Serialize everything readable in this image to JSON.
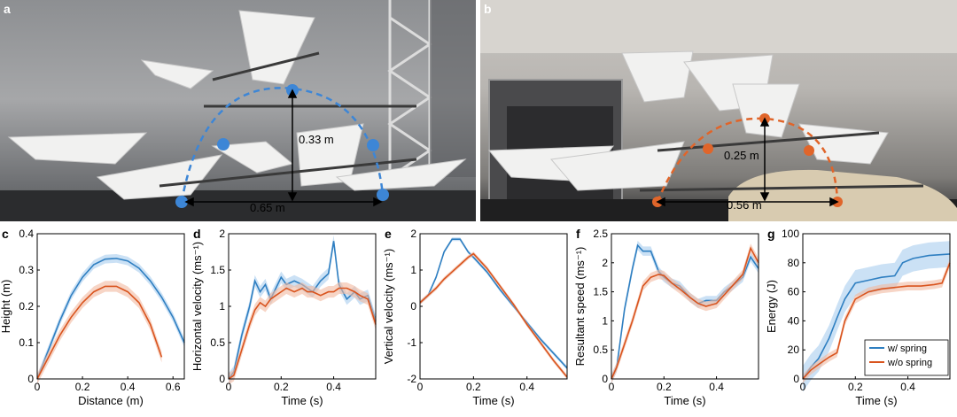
{
  "panels": {
    "a": {
      "letter": "a",
      "height_label": "0.33 m",
      "distance_label": "0.65 m"
    },
    "b": {
      "letter": "b",
      "height_label": "0.25 m",
      "distance_label": "0.56 m"
    }
  },
  "colors": {
    "spring": "#2f7fc1",
    "no_spring": "#d9541e",
    "spring_band": "#a9cdee",
    "no_spring_band": "#f2b9a0",
    "trajectory_a": "#3d86d6",
    "trajectory_b": "#e0652a"
  },
  "chart_data": [
    {
      "letter": "c",
      "type": "line",
      "xlabel": "Distance (m)",
      "ylabel": "Height (m)",
      "xlim": [
        0,
        0.65
      ],
      "ylim": [
        0,
        0.4
      ],
      "xticks": [
        "0",
        "0.2",
        "0.4",
        "0.6"
      ],
      "yticks": [
        "0",
        "0.1",
        "0.2",
        "0.3",
        "0.4"
      ],
      "xtick_values": [
        0,
        0.2,
        0.4,
        0.6
      ],
      "ytick_values": [
        0,
        0.1,
        0.2,
        0.3,
        0.4
      ],
      "series": [
        {
          "key": "spring",
          "x": [
            0,
            0.05,
            0.1,
            0.15,
            0.2,
            0.25,
            0.3,
            0.35,
            0.4,
            0.45,
            0.5,
            0.55,
            0.6,
            0.65
          ],
          "y": [
            0,
            0.08,
            0.16,
            0.23,
            0.28,
            0.315,
            0.33,
            0.332,
            0.325,
            0.305,
            0.27,
            0.225,
            0.17,
            0.1
          ],
          "band": 0.012
        },
        {
          "key": "no_spring",
          "x": [
            0,
            0.05,
            0.1,
            0.15,
            0.2,
            0.25,
            0.3,
            0.35,
            0.4,
            0.45,
            0.5,
            0.55
          ],
          "y": [
            0,
            0.06,
            0.12,
            0.17,
            0.21,
            0.24,
            0.255,
            0.255,
            0.24,
            0.21,
            0.15,
            0.06
          ],
          "band": 0.015
        }
      ]
    },
    {
      "letter": "d",
      "type": "line",
      "xlabel": "Time (s)",
      "ylabel": "Horizontal velocity (ms⁻¹)",
      "xlim": [
        0,
        0.56
      ],
      "ylim": [
        0,
        2
      ],
      "xticks": [
        "0",
        "0.2",
        "0.4"
      ],
      "yticks": [
        "0",
        "0.5",
        "1",
        "1.5",
        "2"
      ],
      "xtick_values": [
        0,
        0.2,
        0.4
      ],
      "ytick_values": [
        0,
        0.5,
        1,
        1.5,
        2
      ],
      "series": [
        {
          "key": "spring",
          "x": [
            0,
            0.02,
            0.05,
            0.08,
            0.1,
            0.12,
            0.14,
            0.16,
            0.18,
            0.2,
            0.22,
            0.25,
            0.28,
            0.3,
            0.32,
            0.35,
            0.38,
            0.4,
            0.42,
            0.45,
            0.48,
            0.5,
            0.53,
            0.56
          ],
          "y": [
            0,
            0.1,
            0.6,
            1.0,
            1.35,
            1.2,
            1.3,
            1.1,
            1.25,
            1.4,
            1.3,
            1.35,
            1.3,
            1.25,
            1.2,
            1.35,
            1.45,
            1.9,
            1.3,
            1.1,
            1.2,
            1.1,
            1.15,
            0.8
          ],
          "band": 0.08
        },
        {
          "key": "no_spring",
          "x": [
            0,
            0.02,
            0.05,
            0.08,
            0.1,
            0.12,
            0.14,
            0.16,
            0.18,
            0.2,
            0.22,
            0.25,
            0.28,
            0.3,
            0.32,
            0.35,
            0.38,
            0.4,
            0.42,
            0.45,
            0.48,
            0.5,
            0.53,
            0.56
          ],
          "y": [
            0,
            0.05,
            0.4,
            0.75,
            0.95,
            1.05,
            1.0,
            1.1,
            1.15,
            1.2,
            1.25,
            1.2,
            1.25,
            1.2,
            1.2,
            1.15,
            1.2,
            1.2,
            1.25,
            1.25,
            1.2,
            1.15,
            1.1,
            0.75
          ],
          "band": 0.08
        }
      ]
    },
    {
      "letter": "e",
      "type": "line",
      "xlabel": "Time (s)",
      "ylabel": "Vertical velocity (ms⁻¹)",
      "xlim": [
        0,
        0.55
      ],
      "ylim": [
        -2,
        2
      ],
      "xticks": [
        "0",
        "0.2",
        "0.4"
      ],
      "yticks": [
        "-2",
        "-1",
        "0",
        "1",
        "2"
      ],
      "xtick_values": [
        0,
        0.2,
        0.4
      ],
      "ytick_values": [
        -2,
        -1,
        0,
        1,
        2
      ],
      "series": [
        {
          "key": "spring",
          "x": [
            0,
            0.03,
            0.06,
            0.09,
            0.12,
            0.15,
            0.18,
            0.2,
            0.25,
            0.3,
            0.35,
            0.4,
            0.45,
            0.5,
            0.55
          ],
          "y": [
            0.1,
            0.3,
            0.8,
            1.5,
            1.85,
            1.85,
            1.5,
            1.35,
            0.95,
            0.45,
            0.0,
            -0.45,
            -0.9,
            -1.3,
            -1.7
          ],
          "band": 0.05
        },
        {
          "key": "no_spring",
          "x": [
            0,
            0.03,
            0.06,
            0.09,
            0.12,
            0.15,
            0.18,
            0.2,
            0.25,
            0.3,
            0.35,
            0.4,
            0.45,
            0.5,
            0.55
          ],
          "y": [
            0.1,
            0.3,
            0.5,
            0.75,
            0.95,
            1.15,
            1.35,
            1.45,
            1.05,
            0.55,
            0.05,
            -0.5,
            -1.0,
            -1.5,
            -1.95
          ],
          "band": 0.06
        }
      ]
    },
    {
      "letter": "f",
      "type": "line",
      "xlabel": "Time (s)",
      "ylabel": "Resultant speed (ms⁻¹)",
      "xlim": [
        0,
        0.56
      ],
      "ylim": [
        0,
        2.5
      ],
      "xticks": [
        "0",
        "0.2",
        "0.4"
      ],
      "yticks": [
        "0",
        "0.5",
        "1",
        "1.5",
        "2",
        "2.5"
      ],
      "xtick_values": [
        0,
        0.2,
        0.4
      ],
      "ytick_values": [
        0,
        0.5,
        1,
        1.5,
        2,
        2.5
      ],
      "series": [
        {
          "key": "spring",
          "x": [
            0,
            0.02,
            0.05,
            0.08,
            0.1,
            0.12,
            0.15,
            0.18,
            0.2,
            0.23,
            0.26,
            0.3,
            0.33,
            0.36,
            0.4,
            0.43,
            0.46,
            0.5,
            0.53,
            0.56
          ],
          "y": [
            0,
            0.2,
            1.2,
            1.9,
            2.3,
            2.2,
            2.2,
            1.85,
            1.75,
            1.65,
            1.6,
            1.4,
            1.3,
            1.35,
            1.35,
            1.5,
            1.6,
            1.75,
            2.1,
            1.9
          ],
          "band": 0.08
        },
        {
          "key": "no_spring",
          "x": [
            0,
            0.02,
            0.05,
            0.08,
            0.1,
            0.12,
            0.15,
            0.18,
            0.2,
            0.23,
            0.26,
            0.3,
            0.33,
            0.36,
            0.4,
            0.43,
            0.46,
            0.5,
            0.53,
            0.56
          ],
          "y": [
            0,
            0.2,
            0.6,
            1.0,
            1.3,
            1.6,
            1.75,
            1.8,
            1.78,
            1.65,
            1.55,
            1.4,
            1.3,
            1.25,
            1.3,
            1.45,
            1.6,
            1.8,
            2.25,
            2.0
          ],
          "band": 0.08
        }
      ]
    },
    {
      "letter": "g",
      "type": "line",
      "xlabel": "Time (s)",
      "ylabel": "Energy (J)",
      "xlim": [
        0,
        0.56
      ],
      "ylim": [
        0,
        100
      ],
      "xticks": [
        "0",
        "0.2",
        "0.4"
      ],
      "yticks": [
        "0",
        "20",
        "40",
        "60",
        "80",
        "100"
      ],
      "xtick_values": [
        0,
        0.2,
        0.4
      ],
      "ytick_values": [
        0,
        20,
        40,
        60,
        80,
        100
      ],
      "legend": {
        "position": "bottom-right",
        "entries": [
          "w/ spring",
          "w/o spring"
        ]
      },
      "series": [
        {
          "key": "spring",
          "name": "w/ spring",
          "x": [
            0,
            0.03,
            0.06,
            0.1,
            0.13,
            0.16,
            0.2,
            0.25,
            0.3,
            0.35,
            0.38,
            0.42,
            0.48,
            0.56
          ],
          "y": [
            0,
            8,
            14,
            28,
            42,
            55,
            66,
            68,
            70,
            71,
            80,
            83,
            85,
            86
          ],
          "band": 9
        },
        {
          "key": "no_spring",
          "name": "w/o spring",
          "x": [
            0,
            0.03,
            0.06,
            0.1,
            0.13,
            0.16,
            0.2,
            0.25,
            0.3,
            0.35,
            0.4,
            0.45,
            0.5,
            0.53,
            0.56
          ],
          "y": [
            0,
            6,
            10,
            15,
            18,
            40,
            55,
            60,
            62,
            63,
            64,
            64,
            65,
            66,
            80
          ],
          "band": 3
        }
      ]
    }
  ]
}
